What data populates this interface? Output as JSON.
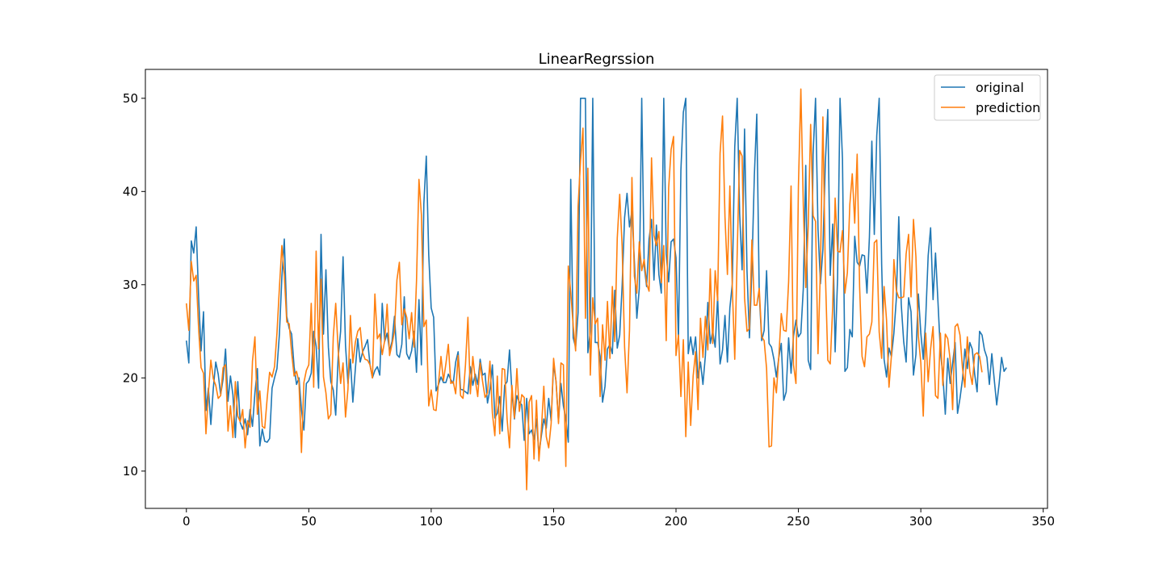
{
  "chart_data": {
    "type": "line",
    "title": "LinearRegrssion",
    "xlabel": "",
    "ylabel": "",
    "xlim": [
      -16.75,
      351.75
    ],
    "ylim": [
      6.0,
      53.1
    ],
    "x_ticks": [
      0,
      50,
      100,
      150,
      200,
      250,
      300,
      350
    ],
    "y_ticks": [
      10,
      20,
      30,
      40,
      50
    ],
    "grid": false,
    "legend_position": "top-right",
    "colors": {
      "original": "#1f77b4",
      "prediction": "#ff7f0e"
    },
    "x_start": 0,
    "x_step": 1,
    "series": [
      {
        "name": "original",
        "values": [
          24.0,
          21.6,
          34.7,
          33.4,
          36.2,
          28.7,
          22.9,
          27.1,
          16.5,
          18.9,
          15.0,
          18.9,
          21.7,
          20.4,
          18.2,
          19.9,
          23.1,
          17.5,
          20.2,
          18.2,
          13.6,
          19.6,
          15.2,
          14.5,
          15.6,
          13.9,
          16.6,
          14.8,
          18.4,
          21.0,
          12.7,
          14.5,
          13.2,
          13.1,
          13.5,
          18.9,
          20.0,
          21.0,
          24.7,
          30.8,
          34.9,
          26.6,
          25.3,
          24.7,
          21.2,
          19.3,
          20.0,
          16.6,
          14.4,
          19.4,
          19.7,
          20.5,
          25.0,
          23.4,
          18.9,
          35.4,
          24.7,
          31.6,
          23.3,
          19.6,
          18.7,
          16.0,
          22.2,
          25.0,
          33.0,
          23.5,
          19.4,
          22.0,
          17.4,
          20.9,
          24.2,
          21.7,
          22.8,
          23.4,
          24.1,
          21.4,
          20.0,
          20.8,
          21.2,
          20.3,
          28.0,
          23.9,
          24.8,
          22.9,
          23.9,
          26.6,
          22.5,
          22.2,
          23.6,
          28.7,
          22.6,
          22.0,
          22.9,
          25.0,
          20.6,
          28.4,
          21.4,
          38.7,
          43.8,
          33.2,
          27.5,
          26.5,
          18.6,
          19.3,
          20.1,
          19.5,
          19.5,
          20.4,
          19.8,
          19.4,
          21.7,
          22.8,
          18.8,
          18.7,
          18.5,
          18.3,
          21.2,
          19.2,
          20.4,
          19.3,
          22.0,
          20.3,
          20.5,
          17.3,
          18.8,
          21.4,
          15.7,
          16.2,
          18.0,
          14.3,
          19.2,
          19.6,
          23.0,
          18.4,
          15.6,
          18.1,
          17.4,
          17.1,
          13.3,
          17.8,
          14.0,
          14.4,
          13.4,
          15.6,
          11.8,
          13.8,
          15.6,
          14.6,
          17.8,
          15.4,
          21.5,
          19.6,
          15.3,
          19.4,
          17.0,
          15.6,
          13.1,
          41.3,
          24.3,
          23.3,
          27.0,
          50.0,
          50.0,
          50.0,
          22.7,
          25.0,
          50.0,
          23.8,
          23.8,
          22.3,
          17.4,
          19.1,
          23.1,
          23.6,
          22.6,
          29.4,
          23.2,
          24.6,
          29.9,
          37.2,
          39.8,
          36.2,
          37.9,
          32.5,
          26.4,
          29.6,
          50.0,
          32.0,
          29.8,
          34.9,
          37.0,
          30.5,
          36.4,
          31.1,
          29.1,
          50.0,
          33.3,
          30.3,
          34.6,
          34.9,
          32.9,
          24.1,
          42.3,
          48.5,
          50.0,
          22.6,
          24.4,
          22.5,
          24.4,
          20.0,
          21.7,
          19.3,
          22.4,
          28.1,
          23.7,
          25.0,
          23.3,
          28.7,
          21.5,
          23.0,
          26.7,
          21.7,
          27.5,
          30.1,
          44.8,
          50.0,
          37.6,
          31.6,
          46.7,
          31.5,
          24.3,
          31.7,
          41.7,
          48.3,
          29.0,
          24.0,
          25.1,
          31.5,
          23.7,
          23.3,
          22.0,
          20.1,
          22.2,
          23.7,
          17.6,
          18.5,
          24.3,
          20.5,
          24.5,
          26.2,
          24.4,
          24.8,
          29.6,
          42.8,
          21.9,
          20.9,
          44.0,
          50.0,
          36.0,
          30.1,
          33.8,
          43.1,
          48.8,
          31.0,
          36.5,
          22.8,
          30.7,
          50.0,
          43.5,
          20.7,
          21.1,
          25.2,
          24.4,
          35.2,
          32.4,
          32.0,
          33.2,
          33.1,
          29.1,
          35.1,
          45.4,
          35.4,
          46.0,
          50.0,
          32.2,
          22.0,
          20.1,
          23.2,
          22.3,
          24.8,
          28.5,
          37.3,
          27.9,
          23.9,
          21.7,
          28.6,
          27.1,
          20.3,
          22.5,
          29.0,
          24.8,
          22.0,
          26.4,
          33.1,
          36.1,
          28.4,
          33.4,
          28.2,
          22.8,
          20.3,
          16.1,
          22.1,
          19.4,
          21.6,
          23.8,
          16.2,
          17.8,
          19.8,
          23.1,
          21.0,
          23.8,
          23.1,
          20.4,
          18.5,
          25.0,
          24.6,
          23.0,
          22.2,
          19.3,
          22.6,
          19.8,
          17.1,
          19.4,
          22.2,
          20.7,
          21.1
        ]
      },
      {
        "name": "prediction",
        "values": [
          28.0,
          25.1,
          32.5,
          30.4,
          31.0,
          25.3,
          21.1,
          20.5,
          14.0,
          18.4,
          21.9,
          19.9,
          19.2,
          17.8,
          18.1,
          21.1,
          21.4,
          14.3,
          17.0,
          13.6,
          19.6,
          15.9,
          15.3,
          16.6,
          12.5,
          15.4,
          14.7,
          21.8,
          24.4,
          16.1,
          18.6,
          14.8,
          14.6,
          17.8,
          20.6,
          20.1,
          21.2,
          24.8,
          29.7,
          34.2,
          31.0,
          26.0,
          25.8,
          22.7,
          20.2,
          20.7,
          19.5,
          12.0,
          19.5,
          20.8,
          21.4,
          28.0,
          19.0,
          33.6,
          23.1,
          30.6,
          20.1,
          18.4,
          15.6,
          16.1,
          24.4,
          28.0,
          23.0,
          19.4,
          21.6,
          15.8,
          18.8,
          26.7,
          21.6,
          23.8,
          25.0,
          25.4,
          22.7,
          22.0,
          21.9,
          21.4,
          20.0,
          29.0,
          24.2,
          24.7,
          22.5,
          24.0,
          27.9,
          22.4,
          23.6,
          25.0,
          30.5,
          32.4,
          25.7,
          27.4,
          26.5,
          24.2,
          27.0,
          23.3,
          30.4,
          41.3,
          37.5,
          25.5,
          26.2,
          17.0,
          18.7,
          16.6,
          16.5,
          19.5,
          22.3,
          19.7,
          21.5,
          23.6,
          19.4,
          19.6,
          18.3,
          22.4,
          18.1,
          17.8,
          21.4,
          26.5,
          18.3,
          22.3,
          19.8,
          18.0,
          21.6,
          19.6,
          17.9,
          18.4,
          21.8,
          16.2,
          13.8,
          20.2,
          14.0,
          21.0,
          20.9,
          15.6,
          12.5,
          19.2,
          15.7,
          21.0,
          16.4,
          18.2,
          17.9,
          8.0,
          17.4,
          18.1,
          11.3,
          17.6,
          11.1,
          14.4,
          19.1,
          13.7,
          12.5,
          15.1,
          22.1,
          19.6,
          15.1,
          21.6,
          21.4,
          10.5,
          32.0,
          29.2,
          25.6,
          22.9,
          38.4,
          43.3,
          46.8,
          26.4,
          42.5,
          20.3,
          28.6,
          25.8,
          26.4,
          18.0,
          25.7,
          21.9,
          28.2,
          22.1,
          29.8,
          23.9,
          35.0,
          39.7,
          34.1,
          23.3,
          18.4,
          25.1,
          41.5,
          30.9,
          29.1,
          34.6,
          31.5,
          32.7,
          30.1,
          29.3,
          43.6,
          35.3,
          34.2,
          35.7,
          30.2,
          34.2,
          24.0,
          40.4,
          44.5,
          45.9,
          22.4,
          24.6,
          18.0,
          24.1,
          13.7,
          21.7,
          14.9,
          20.2,
          22.8,
          16.6,
          26.4,
          22.2,
          26.6,
          23.0,
          31.7,
          23.7,
          31.5,
          28.3,
          44.1,
          48.1,
          37.3,
          31.1,
          40.6,
          29.7,
          22.0,
          33.4,
          44.4,
          43.8,
          28.6,
          25.0,
          25.3,
          34.8,
          27.8,
          27.8,
          29.6,
          24.4,
          24.0,
          21.0,
          12.6,
          12.7,
          20.0,
          18.4,
          22.3,
          26.9,
          25.1,
          25.0,
          30.3,
          40.6,
          21.4,
          19.4,
          40.5,
          51.0,
          38.5,
          29.7,
          36.3,
          47.2,
          37.4,
          36.8,
          22.6,
          31.8,
          48.0,
          31.4,
          21.9,
          21.5,
          27.6,
          39.3,
          33.6,
          33.5,
          35.8,
          29.1,
          31.3,
          38.6,
          41.9,
          36.6,
          44.0,
          29.8,
          22.3,
          21.2,
          24.4,
          24.7,
          26.0,
          34.5,
          34.8,
          24.9,
          22.1,
          29.8,
          26.2,
          19.0,
          22.4,
          32.7,
          29.4,
          28.6,
          28.6,
          28.7,
          33.3,
          35.4,
          28.7,
          37.0,
          33.0,
          24.5,
          21.6,
          15.9,
          24.8,
          19.6,
          23.1,
          25.5,
          18.1,
          17.8,
          24.8,
          19.2,
          24.7,
          24.2,
          21.9,
          16.6,
          25.5,
          25.8,
          24.6,
          21.1,
          19.0,
          24.4,
          20.7,
          19.3,
          22.5,
          22.7,
          22.3,
          20.6
        ]
      }
    ]
  }
}
